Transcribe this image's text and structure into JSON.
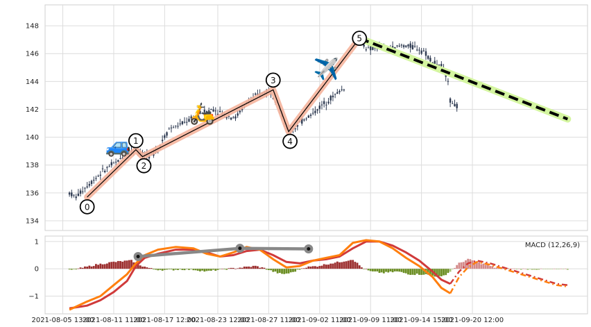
{
  "chart_data": [
    {
      "type": "candlestick",
      "title": "",
      "xlabel": "",
      "ylabel": "",
      "ylim": [
        133.3,
        149.5
      ],
      "yticks": [
        134,
        136,
        138,
        140,
        142,
        144,
        146,
        148
      ],
      "grid": true,
      "candle_color": "#2f3b52",
      "price_path": [
        [
          0,
          136.0
        ],
        [
          3,
          135.7
        ],
        [
          6,
          136.2
        ],
        [
          10,
          136.8
        ],
        [
          14,
          137.4
        ],
        [
          18,
          137.9
        ],
        [
          22,
          138.3
        ],
        [
          26,
          138.9
        ],
        [
          30,
          139.1
        ],
        [
          33,
          138.8
        ],
        [
          36,
          138.6
        ],
        [
          40,
          139.2
        ],
        [
          45,
          140.6
        ],
        [
          50,
          140.9
        ],
        [
          55,
          141.3
        ],
        [
          60,
          141.8
        ],
        [
          65,
          142.0
        ],
        [
          70,
          141.6
        ],
        [
          75,
          141.4
        ],
        [
          80,
          142.5
        ],
        [
          85,
          143.0
        ],
        [
          90,
          143.4
        ],
        [
          94,
          142.6
        ],
        [
          98,
          140.5
        ],
        [
          102,
          140.7
        ],
        [
          106,
          141.3
        ],
        [
          110,
          141.7
        ],
        [
          114,
          142.3
        ],
        [
          118,
          142.8
        ],
        [
          122,
          143.3
        ],
        [
          124,
          143.5
        ],
        [
          130,
          147.1
        ],
        [
          135,
          146.3
        ],
        [
          140,
          146.5
        ],
        [
          145,
          146.3
        ],
        [
          150,
          146.6
        ],
        [
          155,
          146.5
        ],
        [
          160,
          146.2
        ],
        [
          164,
          145.4
        ],
        [
          168,
          145.1
        ],
        [
          171,
          144.2
        ],
        [
          172,
          142.6
        ],
        [
          175,
          142.2
        ]
      ],
      "gap_after_index": 124,
      "wave_points": [
        {
          "label": "0",
          "x": 8,
          "y": 135.7
        },
        {
          "label": "1",
          "x": 30,
          "y": 139.1
        },
        {
          "label": "2",
          "x": 33,
          "y": 138.6
        },
        {
          "label": "3",
          "x": 92,
          "y": 143.4
        },
        {
          "label": "4",
          "x": 99,
          "y": 140.4
        },
        {
          "label": "5",
          "x": 131,
          "y": 147.1
        }
      ],
      "trend_projection": {
        "from": [
          131,
          147.1
        ],
        "to": [
          225,
          141.3
        ],
        "color": "#000000",
        "halo": "#d4f5a0"
      },
      "wave_line_color": "#000000",
      "wave_halo_color": "#f5b49c",
      "emojis": [
        {
          "glyph": "🚙",
          "name": "car-icon",
          "x": 22,
          "y": 139.5
        },
        {
          "glyph": "🛵",
          "name": "scooter-icon",
          "x": 60,
          "y": 141.8
        },
        {
          "glyph": "✈️",
          "name": "airplane-icon",
          "x": 116,
          "y": 145.0
        }
      ]
    },
    {
      "type": "bar+line",
      "title": "",
      "label": "MACD (12,26,9)",
      "ylim": [
        -1.65,
        1.2
      ],
      "yticks": [
        -1,
        0,
        1
      ],
      "histogram_positive_color": "#9b2d2d",
      "histogram_negative_color": "#6b8e23",
      "histogram_projected_positive_color": "#d48a8a",
      "histogram_projected_negative_color": "#a8c07a",
      "histogram_keypoints": [
        [
          0,
          -0.05
        ],
        [
          5,
          0.02
        ],
        [
          12,
          0.15
        ],
        [
          20,
          0.25
        ],
        [
          28,
          0.3
        ],
        [
          33,
          0.1
        ],
        [
          38,
          -0.02
        ],
        [
          44,
          -0.05
        ],
        [
          50,
          -0.02
        ],
        [
          56,
          -0.03
        ],
        [
          62,
          -0.1
        ],
        [
          66,
          -0.05
        ],
        [
          72,
          0.0
        ],
        [
          78,
          0.05
        ],
        [
          84,
          0.1
        ],
        [
          88,
          0.02
        ],
        [
          92,
          -0.1
        ],
        [
          96,
          -0.2
        ],
        [
          100,
          -0.15
        ],
        [
          106,
          0.05
        ],
        [
          112,
          0.1
        ],
        [
          118,
          0.2
        ],
        [
          122,
          0.25
        ],
        [
          128,
          0.35
        ],
        [
          132,
          0.05
        ],
        [
          136,
          -0.1
        ],
        [
          142,
          -0.15
        ],
        [
          148,
          -0.1
        ],
        [
          154,
          -0.2
        ],
        [
          160,
          -0.2
        ],
        [
          168,
          -0.3
        ],
        [
          172,
          -0.1
        ],
        [
          176,
          0.2
        ],
        [
          180,
          0.35
        ],
        [
          186,
          0.2
        ],
        [
          192,
          0.05
        ],
        [
          200,
          0.0
        ],
        [
          212,
          -0.02
        ],
        [
          225,
          -0.02
        ]
      ],
      "histogram_projection_start": 172,
      "macd_line": {
        "color": "#ff7f0e",
        "points": [
          [
            0,
            -1.5
          ],
          [
            8,
            -1.2
          ],
          [
            14,
            -1.0
          ],
          [
            20,
            -0.6
          ],
          [
            26,
            -0.2
          ],
          [
            30,
            0.2
          ],
          [
            34,
            0.5
          ],
          [
            40,
            0.7
          ],
          [
            48,
            0.8
          ],
          [
            56,
            0.75
          ],
          [
            62,
            0.55
          ],
          [
            68,
            0.45
          ],
          [
            74,
            0.6
          ],
          [
            80,
            0.8
          ],
          [
            86,
            0.7
          ],
          [
            92,
            0.35
          ],
          [
            98,
            0.05
          ],
          [
            104,
            0.1
          ],
          [
            110,
            0.3
          ],
          [
            116,
            0.4
          ],
          [
            122,
            0.5
          ],
          [
            128,
            0.95
          ],
          [
            134,
            1.05
          ],
          [
            140,
            1.0
          ],
          [
            146,
            0.75
          ],
          [
            152,
            0.4
          ],
          [
            158,
            0.1
          ],
          [
            164,
            -0.3
          ],
          [
            168,
            -0.7
          ],
          [
            172,
            -0.9
          ]
        ]
      },
      "signal_line": {
        "color": "#d03a3a",
        "points": [
          [
            0,
            -1.45
          ],
          [
            8,
            -1.35
          ],
          [
            14,
            -1.15
          ],
          [
            20,
            -0.85
          ],
          [
            26,
            -0.45
          ],
          [
            30,
            0.1
          ],
          [
            34,
            0.4
          ],
          [
            40,
            0.55
          ],
          [
            48,
            0.7
          ],
          [
            56,
            0.7
          ],
          [
            62,
            0.6
          ],
          [
            68,
            0.45
          ],
          [
            74,
            0.5
          ],
          [
            80,
            0.65
          ],
          [
            86,
            0.7
          ],
          [
            92,
            0.5
          ],
          [
            98,
            0.25
          ],
          [
            104,
            0.2
          ],
          [
            110,
            0.3
          ],
          [
            116,
            0.35
          ],
          [
            122,
            0.45
          ],
          [
            128,
            0.75
          ],
          [
            134,
            1.0
          ],
          [
            140,
            1.0
          ],
          [
            146,
            0.85
          ],
          [
            152,
            0.6
          ],
          [
            158,
            0.3
          ],
          [
            164,
            -0.1
          ],
          [
            168,
            -0.4
          ],
          [
            172,
            -0.55
          ]
        ]
      },
      "macd_projection": {
        "color": "#ff7f0e",
        "points": [
          [
            172,
            -0.9
          ],
          [
            176,
            -0.3
          ],
          [
            180,
            0.05
          ],
          [
            184,
            0.25
          ],
          [
            190,
            0.15
          ],
          [
            198,
            -0.05
          ],
          [
            206,
            -0.25
          ],
          [
            214,
            -0.45
          ],
          [
            220,
            -0.6
          ],
          [
            225,
            -0.65
          ]
        ]
      },
      "signal_projection": {
        "color": "#d03a3a",
        "points": [
          [
            172,
            -0.55
          ],
          [
            176,
            -0.1
          ],
          [
            180,
            0.2
          ],
          [
            184,
            0.3
          ],
          [
            190,
            0.2
          ],
          [
            198,
            0.0
          ],
          [
            206,
            -0.2
          ],
          [
            214,
            -0.4
          ],
          [
            220,
            -0.55
          ],
          [
            225,
            -0.6
          ]
        ]
      },
      "divergence_points": [
        [
          31,
          0.45
        ],
        [
          77,
          0.75
        ],
        [
          108,
          0.73
        ]
      ]
    }
  ],
  "x_tick_labels": [
    "2021-08-05 13:00",
    "2021-08-11 11:00",
    "2021-08-17 12:00",
    "2021-08-23 12:00",
    "2021-08-27 11:00",
    "2021-09-02 11:00",
    "2021-09-09 11:00",
    "2021-09-14 15:00",
    "2021-09-20 12:00"
  ],
  "x_tick_index": [
    -3,
    20,
    43,
    67,
    90,
    113,
    136,
    159,
    182
  ],
  "x_range": [
    -11,
    234
  ]
}
